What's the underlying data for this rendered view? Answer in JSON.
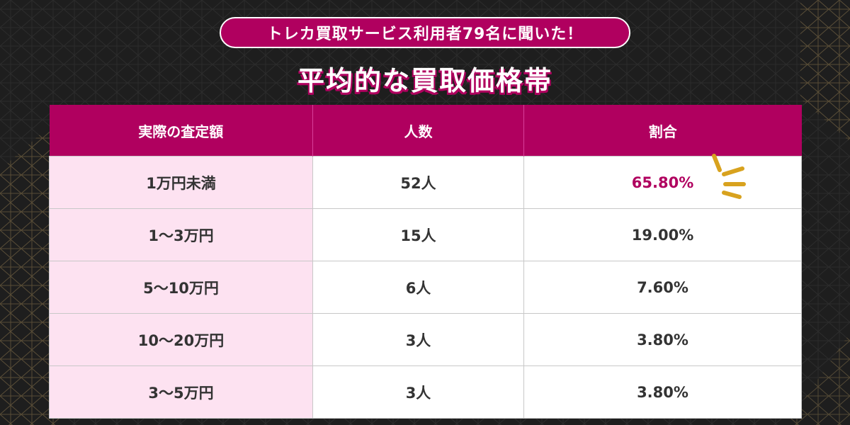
{
  "header": {
    "subtitle": "トレカ買取サービス利用者79名に聞いた！",
    "title": "平均的な買取価格帯"
  },
  "table": {
    "columns": [
      "実際の査定額",
      "人数",
      "割合"
    ],
    "rows": [
      {
        "amount": "1万円未満",
        "people": "52人",
        "ratio": "65.80%"
      },
      {
        "amount": "1～3万円",
        "people": "15人",
        "ratio": "19.00%"
      },
      {
        "amount": "5～10万円",
        "people": "6人",
        "ratio": "7.60%"
      },
      {
        "amount": "10～20万円",
        "people": "3人",
        "ratio": "3.80%"
      },
      {
        "amount": "3～5万円",
        "people": "3人",
        "ratio": "3.80%"
      }
    ]
  },
  "colors": {
    "accent": "#b0005f",
    "label_bg": "#fde2f1",
    "background": "#1e1e1e",
    "rays": "#d8a21e"
  },
  "decorations": {
    "highlight_icon": "emphasis-rays-icon"
  }
}
